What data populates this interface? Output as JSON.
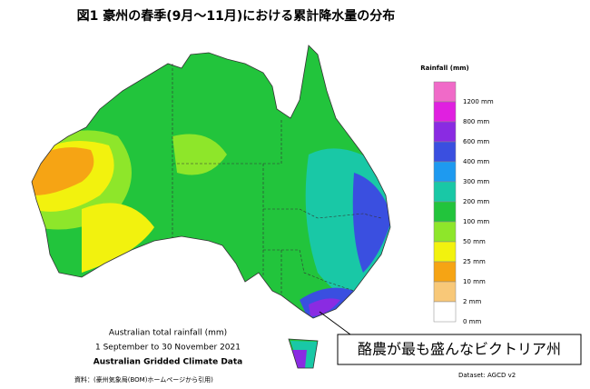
{
  "header": {
    "title": "図1 豪州の春季(9月～11月)における累計降水量の分布"
  },
  "legend": {
    "title": "Rainfall (mm)",
    "items": [
      {
        "label": "1200 mm",
        "color": "#f06ac8"
      },
      {
        "label": "800 mm",
        "color": "#e020e0"
      },
      {
        "label": "600 mm",
        "color": "#8a2be2"
      },
      {
        "label": "400 mm",
        "color": "#3a4fe0"
      },
      {
        "label": "300 mm",
        "color": "#1e9af0"
      },
      {
        "label": "200 mm",
        "color": "#19c8a6"
      },
      {
        "label": "100 mm",
        "color": "#22c43c"
      },
      {
        "label": "50 mm",
        "color": "#8ee62a"
      },
      {
        "label": "25 mm",
        "color": "#f2f20e"
      },
      {
        "label": "10 mm",
        "color": "#f6a414"
      },
      {
        "label": "2 mm",
        "color": "#f8c878"
      },
      {
        "label": "0 mm",
        "color": "#ffffff"
      }
    ]
  },
  "caption": [
    "Australian total rainfall (mm)",
    "1 September to 30 November 2021",
    "Australian Gridded Climate Data"
  ],
  "callout": "酪農が最も盛んなビクトリア州",
  "source": "資料：(豪州気象局(BOM)ホームページから引用)",
  "dataset": "Dataset: AGCD v2"
}
